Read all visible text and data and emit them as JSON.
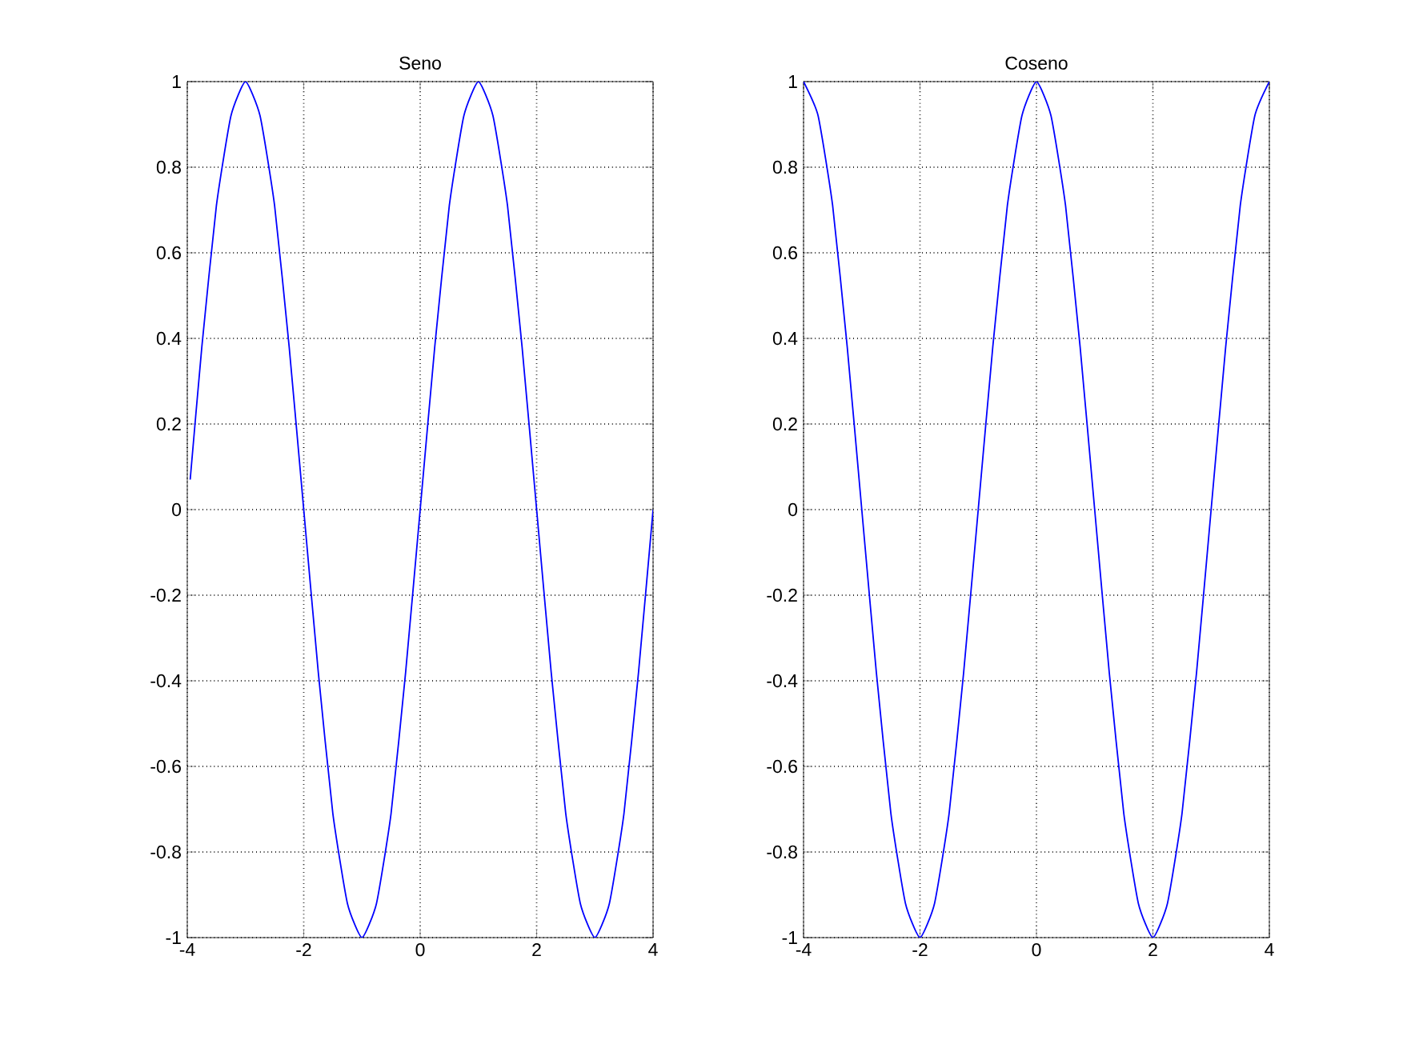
{
  "chart_data": [
    {
      "type": "line",
      "title": "Seno",
      "color": "#0000ff",
      "grid": true,
      "x": [
        -3.95,
        -3.75,
        -3.5,
        -3.25,
        -3,
        -2.75,
        -2.5,
        -2.25,
        -2,
        -1.75,
        -1.5,
        -1.25,
        -1,
        -0.75,
        -0.5,
        -0.25,
        0,
        0.25,
        0.5,
        0.75,
        1,
        1.25,
        1.5,
        1.75,
        2,
        2.25,
        2.5,
        2.75,
        3,
        3.25,
        3.5,
        3.75,
        4
      ],
      "values": [
        0.07,
        0.38,
        0.71,
        0.92,
        1,
        0.92,
        0.71,
        0.38,
        0,
        -0.38,
        -0.71,
        -0.92,
        -1,
        -0.92,
        -0.71,
        -0.38,
        0,
        0.38,
        0.71,
        0.92,
        1,
        0.92,
        0.71,
        0.38,
        0,
        -0.38,
        -0.71,
        -0.92,
        -1,
        -0.92,
        -0.71,
        -0.38,
        0
      ],
      "xlim": [
        -4,
        4
      ],
      "ylim": [
        -1,
        1
      ],
      "xticks": [
        -4,
        -2,
        0,
        2,
        4
      ],
      "yticks": [
        -1,
        -0.8,
        -0.6,
        -0.4,
        -0.2,
        0,
        0.2,
        0.4,
        0.6,
        0.8,
        1
      ]
    },
    {
      "type": "line",
      "title": "Coseno",
      "color": "#0000ff",
      "grid": true,
      "x": [
        -4,
        -3.75,
        -3.5,
        -3.25,
        -3,
        -2.75,
        -2.5,
        -2.25,
        -2,
        -1.75,
        -1.5,
        -1.25,
        -1,
        -0.75,
        -0.5,
        -0.25,
        0,
        0.25,
        0.5,
        0.75,
        1,
        1.25,
        1.5,
        1.75,
        2,
        2.25,
        2.5,
        2.75,
        3,
        3.25,
        3.5,
        3.75,
        4
      ],
      "values": [
        1,
        0.92,
        0.71,
        0.38,
        0,
        -0.38,
        -0.71,
        -0.92,
        -1,
        -0.92,
        -0.71,
        -0.38,
        0,
        0.38,
        0.71,
        0.92,
        1,
        0.92,
        0.71,
        0.38,
        0,
        -0.38,
        -0.71,
        -0.92,
        -1,
        -0.92,
        -0.71,
        -0.38,
        0,
        0.38,
        0.71,
        0.92,
        1
      ],
      "xlim": [
        -4,
        4
      ],
      "ylim": [
        -1,
        1
      ],
      "xticks": [
        -4,
        -2,
        0,
        2,
        4
      ],
      "yticks": [
        -1,
        -0.8,
        -0.6,
        -0.4,
        -0.2,
        0,
        0.2,
        0.4,
        0.6,
        0.8,
        1
      ]
    }
  ]
}
